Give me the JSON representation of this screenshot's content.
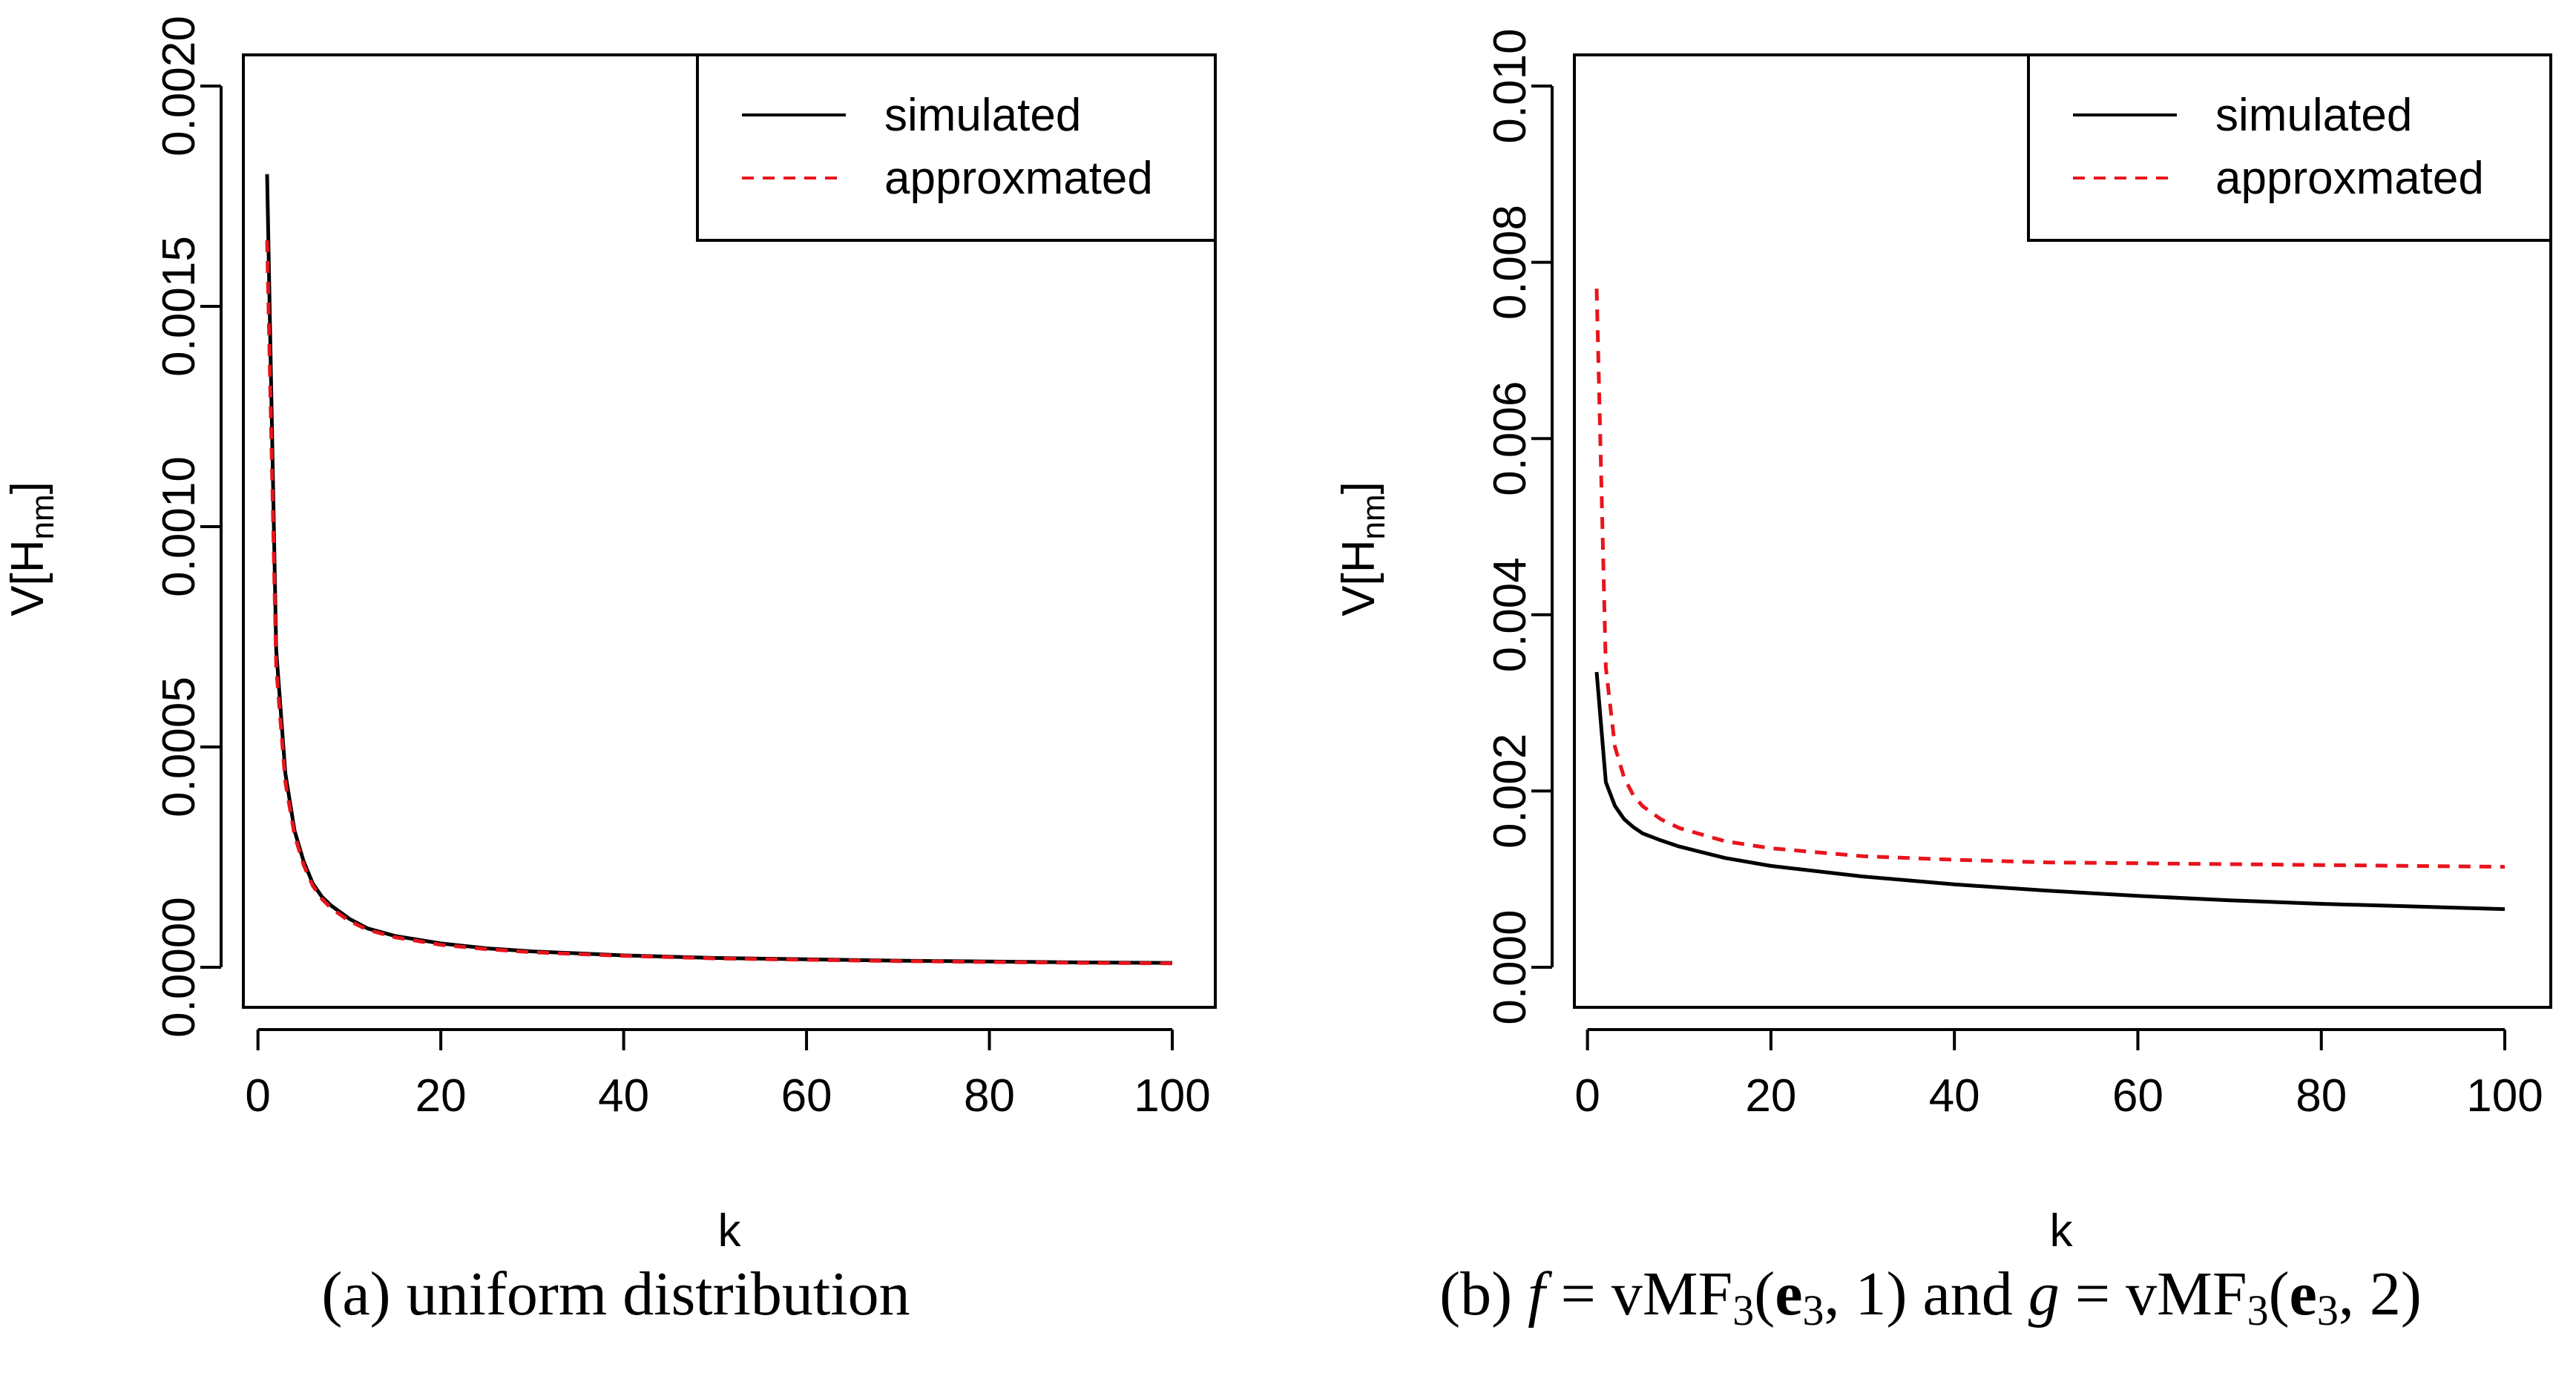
{
  "chart_data": [
    {
      "type": "line",
      "panel": "a",
      "caption": "(a) uniform distribution",
      "xlabel": "k",
      "ylabel": "V[H",
      "ylabel_sub": "nm",
      "ylabel_close": "]",
      "xlim": [
        1,
        100
      ],
      "ylim": [
        0,
        0.002
      ],
      "xticks": [
        0,
        20,
        40,
        60,
        80,
        100
      ],
      "xtick_labels": [
        "0",
        "20",
        "40",
        "60",
        "80",
        "100"
      ],
      "yticks": [
        0,
        0.0005,
        0.001,
        0.0015,
        0.002
      ],
      "ytick_labels": [
        "0.0000",
        "0.0005",
        "0.0010",
        "0.0015",
        "0.0020"
      ],
      "legend_position": "top-right",
      "series": [
        {
          "name": "simulated",
          "style": "solid",
          "color": "#000000",
          "x": [
            1,
            2,
            3,
            4,
            5,
            6,
            7,
            8,
            10,
            12,
            15,
            20,
            25,
            30,
            40,
            50,
            60,
            70,
            80,
            90,
            100
          ],
          "values": [
            0.0018,
            0.00072,
            0.00044,
            0.00031,
            0.00024,
            0.00019,
            0.00016,
            0.00014,
            0.00011,
            8.8e-05,
            7.1e-05,
            5.4e-05,
            4.3e-05,
            3.6e-05,
            2.7e-05,
            2.1e-05,
            1.8e-05,
            1.5e-05,
            1.3e-05,
            1.1e-05,
            1e-05
          ]
        },
        {
          "name": "approxmated",
          "style": "dashed",
          "color": "#e8141c",
          "x": [
            1,
            2,
            3,
            4,
            5,
            6,
            7,
            8,
            10,
            12,
            15,
            20,
            25,
            30,
            40,
            50,
            60,
            70,
            80,
            90,
            100
          ],
          "values": [
            0.00165,
            0.00068,
            0.00042,
            0.0003,
            0.000232,
            0.000185,
            0.000155,
            0.000134,
            0.000105,
            8.5e-05,
            6.8e-05,
            5.1e-05,
            4.1e-05,
            3.4e-05,
            2.6e-05,
            2e-05,
            1.7e-05,
            1.4e-05,
            1.2e-05,
            1e-05,
            9e-06
          ]
        }
      ]
    },
    {
      "type": "line",
      "panel": "b",
      "caption_prefix": "(b) ",
      "caption_f": "f",
      "caption_eq1": " = vMF",
      "caption_sub1": "3",
      "caption_args_open": "(",
      "caption_e": "e",
      "caption_e_sub": "3",
      "caption_args1_close": ", 1) and ",
      "caption_g": "g",
      "caption_eq2": " = vMF",
      "caption_sub2": "3",
      "caption_args2_close": ", 2)",
      "xlabel": "k",
      "ylabel": "V[H",
      "ylabel_sub": "nm",
      "ylabel_close": "]",
      "xlim": [
        1,
        100
      ],
      "ylim": [
        0,
        0.01
      ],
      "xticks": [
        0,
        20,
        40,
        60,
        80,
        100
      ],
      "xtick_labels": [
        "0",
        "20",
        "40",
        "60",
        "80",
        "100"
      ],
      "yticks": [
        0,
        0.002,
        0.004,
        0.006,
        0.008,
        0.01
      ],
      "ytick_labels": [
        "0.000",
        "0.002",
        "0.004",
        "0.006",
        "0.008",
        "0.010"
      ],
      "legend_position": "top-right",
      "series": [
        {
          "name": "simulated",
          "style": "solid",
          "color": "#000000",
          "x": [
            1,
            2,
            3,
            4,
            5,
            6,
            8,
            10,
            15,
            20,
            30,
            40,
            50,
            60,
            70,
            80,
            90,
            100
          ],
          "values": [
            0.00335,
            0.0021,
            0.00183,
            0.00168,
            0.00159,
            0.00152,
            0.00144,
            0.00137,
            0.00124,
            0.00115,
            0.00103,
            0.00094,
            0.00087,
            0.00081,
            0.00076,
            0.00072,
            0.00069,
            0.00066
          ]
        },
        {
          "name": "approxmated",
          "style": "dashed",
          "color": "#e8141c",
          "x": [
            1,
            2,
            3,
            4,
            5,
            6,
            8,
            10,
            15,
            20,
            30,
            40,
            50,
            60,
            70,
            80,
            90,
            100
          ],
          "values": [
            0.0077,
            0.0034,
            0.0025,
            0.00215,
            0.00195,
            0.00183,
            0.00168,
            0.00158,
            0.00143,
            0.00135,
            0.00126,
            0.00122,
            0.00119,
            0.00118,
            0.00117,
            0.00116,
            0.00115,
            0.00114
          ]
        }
      ]
    }
  ]
}
